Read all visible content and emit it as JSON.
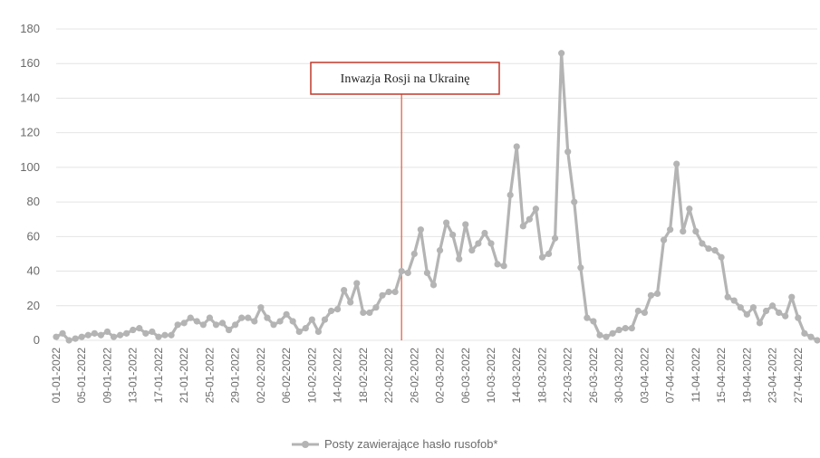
{
  "chart_data": {
    "type": "line",
    "title": "",
    "xlabel": "",
    "ylabel": "",
    "ylim": [
      0,
      180
    ],
    "yticks": [
      0,
      20,
      40,
      60,
      80,
      100,
      120,
      140,
      160,
      180
    ],
    "grid": true,
    "legend_position": "bottom",
    "series_color": "#b4b4b4",
    "marker_line_color": "#e05a3a",
    "annotation_border_color": "#c0392b",
    "x_tick_labels": [
      "01-01-2022",
      "05-01-2022",
      "09-01-2022",
      "13-01-2022",
      "17-01-2022",
      "21-01-2022",
      "25-01-2022",
      "29-01-2022",
      "02-02-2022",
      "06-02-2022",
      "10-02-2022",
      "14-02-2022",
      "18-02-2022",
      "22-02-2022",
      "26-02-2022",
      "02-03-2022",
      "06-03-2022",
      "10-03-2022",
      "14-03-2022",
      "18-03-2022",
      "22-03-2022",
      "26-03-2022",
      "30-03-2022",
      "03-04-2022",
      "07-04-2022",
      "11-04-2022",
      "15-04-2022",
      "19-04-2022",
      "23-04-2022",
      "27-04-2022"
    ],
    "annotation": {
      "text": "Inwazja Rosji na Ukrainę",
      "date": "24-02-2022"
    },
    "series": [
      {
        "name": "Posty zawierające hasło rusofob*",
        "x_start": "01-01-2022",
        "x_end": "30-04-2022",
        "values": [
          2,
          4,
          0,
          1,
          2,
          3,
          4,
          3,
          5,
          2,
          3,
          4,
          6,
          7,
          4,
          5,
          2,
          3,
          3,
          9,
          10,
          13,
          11,
          9,
          13,
          9,
          10,
          6,
          9,
          13,
          13,
          11,
          19,
          13,
          9,
          11,
          15,
          11,
          5,
          7,
          12,
          5,
          12,
          17,
          18,
          29,
          22,
          33,
          16,
          16,
          19,
          26,
          28,
          28,
          40,
          39,
          50,
          64,
          39,
          32,
          52,
          68,
          61,
          47,
          67,
          52,
          56,
          62,
          56,
          44,
          43,
          84,
          112,
          66,
          70,
          76,
          48,
          50,
          59,
          166,
          109,
          80,
          42,
          13,
          11,
          3,
          2,
          4,
          6,
          7,
          7,
          17,
          16,
          26,
          27,
          58,
          64,
          102,
          63,
          76,
          63,
          56,
          53,
          52,
          48,
          25,
          23,
          19,
          15,
          19,
          10,
          17,
          20,
          16,
          14,
          25,
          13,
          4,
          2,
          0
        ]
      }
    ]
  }
}
